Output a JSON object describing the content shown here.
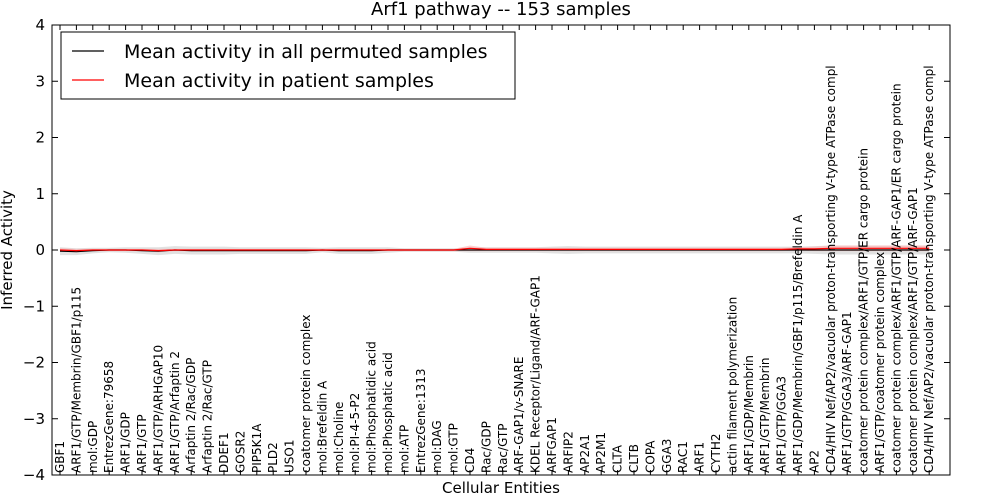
{
  "chart_data": {
    "type": "line",
    "title": "Arf1 pathway -- 153 samples",
    "xlabel": "Cellular Entities",
    "ylabel": "Inferred Activity",
    "ylim": [
      -4,
      4
    ],
    "yticks": [
      -4,
      -3,
      -2,
      -1,
      0,
      1,
      2,
      3,
      4
    ],
    "ytick_labels": [
      "−4",
      "−3",
      "−2",
      "−1",
      "0",
      "1",
      "2",
      "3",
      "4"
    ],
    "legend_position": "top-left",
    "categories": [
      "GBF1",
      "ARF1/GTP/Membrin/GBF1/p115",
      "mol:GDP",
      "EntrezGene:79658",
      "ARF1/GDP",
      "ARF1/GTP",
      "ARF1/GTP/ARHGAP10",
      "ARF1/GTP/Arfaptin 2",
      "Arfaptin 2/Rac/GDP",
      "Arfaptin 2/Rac/GTP",
      "DDEF1",
      "GOSR2",
      "PIP5K1A",
      "PLD2",
      "USO1",
      "coatomer protein complex",
      "mol:Brefeldin A",
      "mol:Choline",
      "mol:PI-4-5-P2",
      "mol:Phosphatidic acid",
      "mol:Phosphatic acid",
      "mol:ATP",
      "EntrezGene:1313",
      "mol:DAG",
      "mol:GTP",
      "CD4",
      "Rac/GDP",
      "Rac/GTP",
      "ARF-GAP1/v-SNARE",
      "KDEL Receptor/Ligand/ARF-GAP1",
      "ARFGAP1",
      "ARFIP2",
      "AP2A1",
      "AP2M1",
      "CLTA",
      "CLTB",
      "COPA",
      "GGA3",
      "RAC1",
      "ARF1",
      "CYTH2",
      "actin filament polymerization",
      "ARF1/GDP/Membrin",
      "ARF1/GTP/Membrin",
      "ARF1/GTP/GGA3",
      "ARF1/GDP/Membrin/GBF1/p115/Brefeldin A",
      "AP2",
      "CD4/HIV Nef/AP2/vacuolar proton-transporting V-type ATPase compl",
      "ARF1/GTP/GGA3/ARF-GAP1",
      "coatomer protein complex/ARF1/GTP/ER cargo protein",
      "ARF1/GTP/coatomer protein complex",
      "coatomer protein complex/ARF1/GTP/ARF-GAP1/ER cargo protein",
      "coatomer protein complex/ARF1/GTP/ARF-GAP1",
      "CD4/HIV Nef/AP2/vacuolar proton-transporting V-type ATPase compl"
    ],
    "series": [
      {
        "name": "Mean activity in all permuted samples",
        "color": "#000000",
        "values": [
          -0.02,
          -0.03,
          -0.01,
          0.0,
          0.0,
          -0.01,
          -0.02,
          0.0,
          -0.01,
          -0.01,
          -0.01,
          -0.01,
          -0.01,
          -0.01,
          -0.01,
          -0.01,
          0.0,
          -0.01,
          -0.01,
          -0.01,
          0.0,
          0.0,
          0.0,
          0.0,
          0.0,
          0.0,
          0.0,
          0.0,
          0.0,
          0.0,
          0.0,
          0.0,
          0.0,
          0.0,
          0.0,
          0.0,
          0.0,
          0.0,
          0.0,
          0.0,
          0.0,
          0.0,
          0.0,
          0.0,
          0.0,
          0.0,
          0.0,
          0.0,
          0.0,
          0.0,
          0.0,
          0.0,
          0.0,
          0.0
        ],
        "spread": [
          0.07,
          0.06,
          0.05,
          0.04,
          0.05,
          0.06,
          0.07,
          0.07,
          0.07,
          0.07,
          0.07,
          0.06,
          0.06,
          0.06,
          0.06,
          0.06,
          0.04,
          0.06,
          0.06,
          0.06,
          0.05,
          0.03,
          0.03,
          0.03,
          0.03,
          0.05,
          0.05,
          0.05,
          0.05,
          0.05,
          0.06,
          0.07,
          0.06,
          0.06,
          0.06,
          0.06,
          0.06,
          0.06,
          0.06,
          0.06,
          0.06,
          0.06,
          0.06,
          0.06,
          0.06,
          0.06,
          0.07,
          0.08,
          0.08,
          0.08,
          0.08,
          0.08,
          0.08,
          0.08
        ]
      },
      {
        "name": "Mean activity in patient samples",
        "color": "#ff0000",
        "values": [
          0.0,
          -0.01,
          0.0,
          0.0,
          0.0,
          0.0,
          -0.01,
          0.0,
          0.0,
          0.0,
          0.0,
          0.0,
          0.0,
          0.0,
          0.0,
          0.0,
          0.0,
          0.0,
          0.0,
          0.0,
          0.0,
          0.0,
          0.0,
          0.0,
          0.0,
          0.03,
          0.01,
          0.01,
          0.01,
          0.01,
          0.01,
          0.01,
          0.01,
          0.01,
          0.01,
          0.01,
          0.01,
          0.01,
          0.01,
          0.01,
          0.01,
          0.01,
          0.01,
          0.01,
          0.01,
          0.02,
          0.02,
          0.03,
          0.03,
          0.03,
          0.03,
          0.03,
          0.03,
          0.03
        ],
        "spread": [
          0.03,
          0.03,
          0.02,
          0.02,
          0.02,
          0.02,
          0.03,
          0.02,
          0.02,
          0.02,
          0.02,
          0.02,
          0.02,
          0.02,
          0.02,
          0.02,
          0.02,
          0.02,
          0.02,
          0.02,
          0.02,
          0.02,
          0.02,
          0.02,
          0.02,
          0.05,
          0.03,
          0.03,
          0.03,
          0.03,
          0.03,
          0.03,
          0.03,
          0.03,
          0.03,
          0.03,
          0.03,
          0.03,
          0.03,
          0.03,
          0.03,
          0.03,
          0.03,
          0.03,
          0.03,
          0.03,
          0.04,
          0.05,
          0.05,
          0.05,
          0.05,
          0.05,
          0.05,
          0.05
        ]
      }
    ]
  }
}
